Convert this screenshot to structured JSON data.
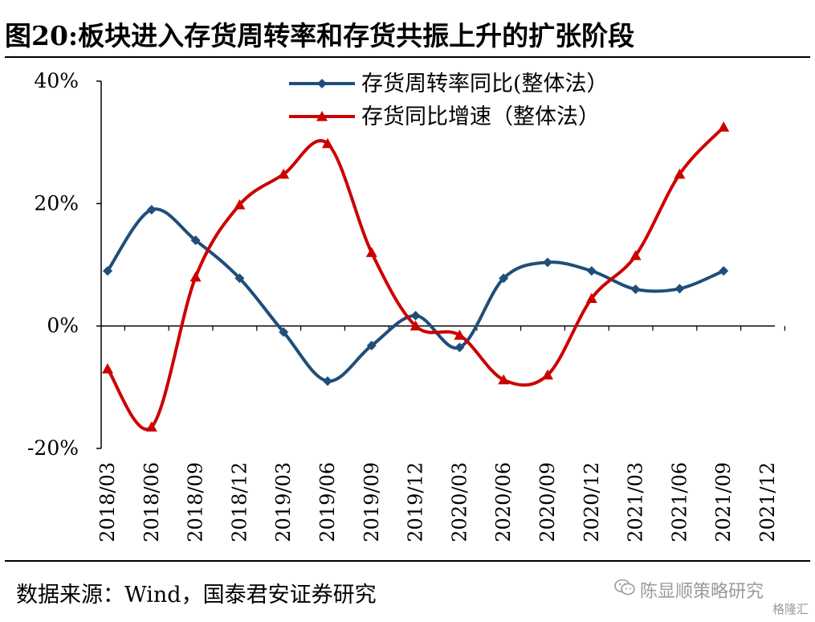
{
  "header": {
    "title": "图20:板块进入存货周转率和存货共振上升的扩张阶段"
  },
  "footer": {
    "source": "数据来源：Wind，国泰君安证券研究",
    "watermark": "陈显顺策略研究",
    "logo": "格隆汇"
  },
  "chart_data": {
    "type": "line",
    "categories": [
      "2018/03",
      "2018/06",
      "2018/09",
      "2018/12",
      "2019/03",
      "2019/06",
      "2019/09",
      "2019/12",
      "2020/03",
      "2020/06",
      "2020/09",
      "2020/12",
      "2021/03",
      "2021/06",
      "2021/09",
      "2021/12"
    ],
    "ylim": [
      -20,
      40
    ],
    "yticks": [
      -20,
      0,
      20,
      40
    ],
    "ytick_labels": [
      "-20%",
      "0%",
      "20%",
      "40%"
    ],
    "legend_position": "top-center",
    "grid": false,
    "series": [
      {
        "name": "存货周转率同比(整体法）",
        "color": "#1f4e79",
        "marker": "diamond",
        "values": [
          9.0,
          19.0,
          14.0,
          7.8,
          -1.0,
          -9.0,
          -3.2,
          1.7,
          -3.5,
          7.8,
          10.4,
          9.0,
          6.0,
          6.1,
          9.0,
          null
        ]
      },
      {
        "name": "存货同比增速（整体法）",
        "color": "#cc0000",
        "marker": "triangle",
        "values": [
          -7.0,
          -16.5,
          8.0,
          19.8,
          24.8,
          29.8,
          12.0,
          0.0,
          -1.5,
          -8.8,
          -8.0,
          4.5,
          11.5,
          24.8,
          32.5,
          null
        ]
      }
    ]
  }
}
